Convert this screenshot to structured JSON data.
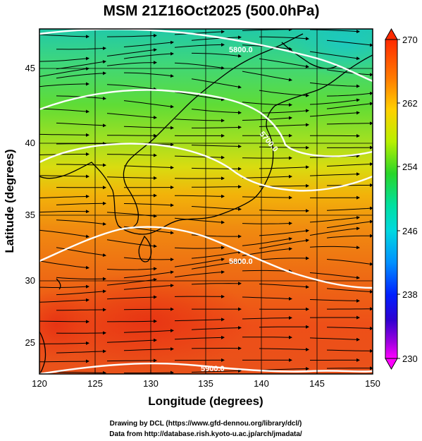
{
  "title": "MSM 21Z16Oct2025 (500.0hPa)",
  "xlabel": "Longitude (degrees)",
  "ylabel": "Latitude  (degrees)",
  "x_ticks": [
    "120",
    "125",
    "130",
    "135",
    "140",
    "145",
    "150"
  ],
  "y_ticks": [
    "25",
    "30",
    "35",
    "40",
    "45"
  ],
  "colorbar_ticks": [
    "270",
    "262",
    "254",
    "246",
    "238",
    "230"
  ],
  "contour_labels": [
    "5800.0",
    "5700.0",
    "5800.0",
    "5900.0",
    "5800.0"
  ],
  "credits": {
    "line1": "Drawing by DCL (https://www.gfd-dennou.org/library/dcl/)",
    "line2": "Data from http://database.rish.kyoto-u.ac.jp/arch/jmadata/"
  },
  "map": {
    "lon_range": [
      120,
      150
    ],
    "lat_range": [
      22.4,
      47.6
    ],
    "field": "temperature (K) shaded, geopotential height contours, wind streamlines",
    "colorbar_range": [
      230,
      270
    ],
    "colors": {
      "cold": "#ff00ff",
      "cool": "#0000ff",
      "mid": "#00ffcc",
      "neutral": "#66ff33",
      "warm": "#ff9900",
      "hot": "#ff3300"
    }
  }
}
